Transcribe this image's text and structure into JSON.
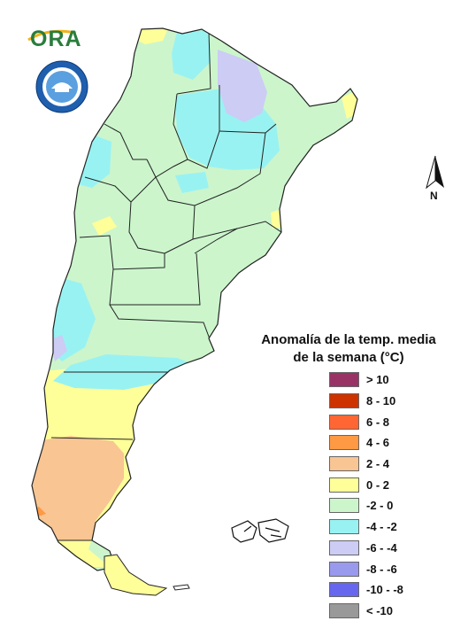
{
  "logo": {
    "text": "ORA"
  },
  "seal": {
    "name": "smn-seal-logo"
  },
  "compass": {
    "north_letter": "N"
  },
  "legend": {
    "title_line1": "Anomalía de la temp. media",
    "title_line2": "de la semana (°C)",
    "items": [
      {
        "label": "> 10",
        "color": "#993366"
      },
      {
        "label": "8 - 10",
        "color": "#cc3300"
      },
      {
        "label": "6 - 8",
        "color": "#ff6633"
      },
      {
        "label": "4 - 6",
        "color": "#ff9944"
      },
      {
        "label": "2 - 4",
        "color": "#f8c593"
      },
      {
        "label": "0 - 2",
        "color": "#ffff99"
      },
      {
        "label": "-2 - 0",
        "color": "#ccf5cc"
      },
      {
        "label": "-4 - -2",
        "color": "#99f2f2"
      },
      {
        "label": "-6 - -4",
        "color": "#ccccf5"
      },
      {
        "label": "-8 - -6",
        "color": "#9999ee"
      },
      {
        "label": "-10 - -8",
        "color": "#6666ee"
      },
      {
        "label": "< -10",
        "color": "#999999"
      }
    ]
  },
  "map": {
    "subject": "Argentina",
    "colors": {
      "base": "#ccf5cc",
      "cold": "#99f2f2",
      "colder": "#ccccf5",
      "warm": "#ffff99",
      "warmer": "#f8c593",
      "hot": "#ff9944",
      "border": "#222222"
    }
  }
}
